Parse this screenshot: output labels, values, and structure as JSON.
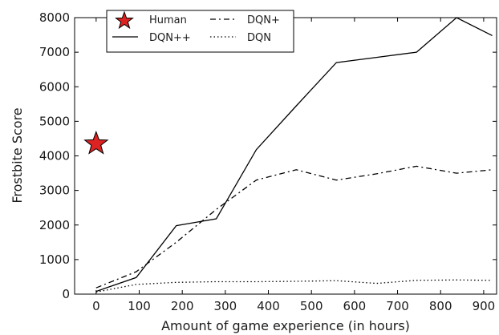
{
  "chart_data": {
    "type": "line",
    "xlabel": "Amount of game experience (in hours)",
    "ylabel": "Frostbite Score",
    "xlim": [
      -50,
      930
    ],
    "ylim": [
      0,
      8000
    ],
    "xticks": [
      0,
      100,
      200,
      300,
      400,
      500,
      600,
      700,
      800,
      900
    ],
    "yticks": [
      0,
      1000,
      2000,
      3000,
      4000,
      5000,
      6000,
      7000,
      8000
    ],
    "grid": false,
    "legend_position": "top-left",
    "series": [
      {
        "name": "DQN++",
        "style": "solid",
        "color": "#000000",
        "x": [
          0,
          93,
          186,
          279,
          372,
          465,
          558,
          651,
          744,
          837,
          920
        ],
        "y": [
          80,
          480,
          1980,
          2180,
          4180,
          5450,
          6700,
          6850,
          7000,
          8000,
          7480
        ]
      },
      {
        "name": "DQN+",
        "style": "dashdot",
        "color": "#000000",
        "x": [
          0,
          93,
          186,
          279,
          372,
          465,
          558,
          651,
          744,
          837,
          920
        ],
        "y": [
          180,
          650,
          1500,
          2450,
          3300,
          3600,
          3300,
          3480,
          3700,
          3500,
          3600
        ]
      },
      {
        "name": "DQN",
        "style": "dotted",
        "color": "#000000",
        "x": [
          0,
          93,
          186,
          279,
          372,
          465,
          558,
          651,
          744,
          837,
          920
        ],
        "y": [
          60,
          280,
          340,
          360,
          360,
          370,
          390,
          310,
          400,
          410,
          400
        ]
      }
    ],
    "markers": [
      {
        "name": "Human",
        "shape": "star",
        "color": "#dd2222",
        "x": 0,
        "y": 4350
      }
    ]
  }
}
